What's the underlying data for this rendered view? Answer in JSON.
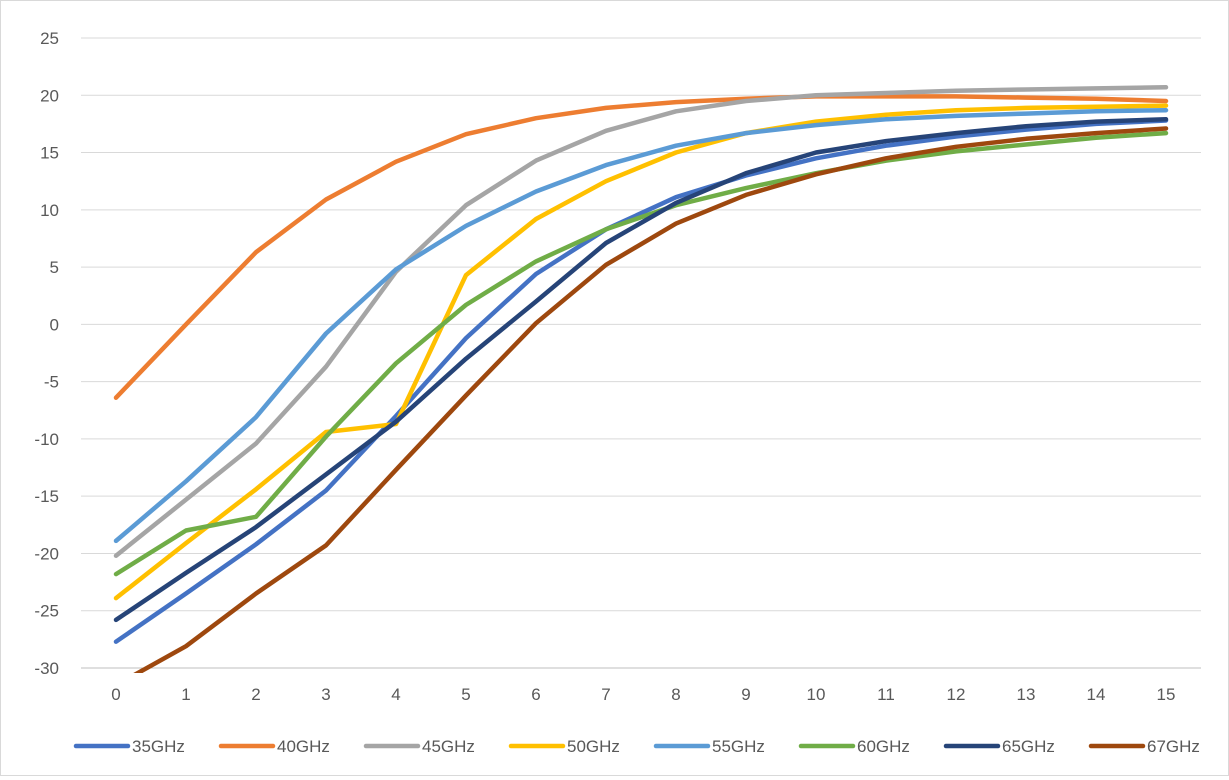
{
  "chart_data": {
    "type": "line",
    "title": "",
    "xlabel": "",
    "ylabel": "",
    "x": [
      0,
      1,
      2,
      3,
      4,
      5,
      6,
      7,
      8,
      9,
      10,
      11,
      12,
      13,
      14,
      15
    ],
    "x_tick_labels": [
      "0",
      "1",
      "2",
      "3",
      "4",
      "5",
      "6",
      "7",
      "8",
      "9",
      "10",
      "11",
      "12",
      "13",
      "14",
      "15"
    ],
    "y_tick_labels": [
      "25",
      "20",
      "15",
      "10",
      "5",
      "0",
      "-5",
      "-10",
      "-15",
      "-20",
      "-25",
      "-30"
    ],
    "y_ticks": [
      25,
      20,
      15,
      10,
      5,
      0,
      -5,
      -10,
      -15,
      -20,
      -25,
      -30
    ],
    "ylim": [
      -30,
      25
    ],
    "grid": "horizontal",
    "legend_position": "bottom",
    "series": [
      {
        "name": "35GHz",
        "color": "#4472C4",
        "values": [
          -27.7,
          -23.5,
          -19.2,
          -14.5,
          -8.0,
          -1.2,
          4.4,
          8.3,
          11.1,
          13.0,
          14.5,
          15.6,
          16.4,
          17.0,
          17.5,
          17.8
        ]
      },
      {
        "name": "40GHz",
        "color": "#ED7D31",
        "values": [
          -6.4,
          0.0,
          6.3,
          10.9,
          14.2,
          16.6,
          18.0,
          18.9,
          19.4,
          19.7,
          19.9,
          19.9,
          19.9,
          19.8,
          19.7,
          19.5
        ]
      },
      {
        "name": "45GHz",
        "color": "#A5A5A5",
        "values": [
          -20.2,
          -15.3,
          -10.4,
          -3.7,
          4.6,
          10.4,
          14.3,
          16.9,
          18.6,
          19.5,
          20.0,
          20.2,
          20.4,
          20.5,
          20.6,
          20.7
        ]
      },
      {
        "name": "50GHz",
        "color": "#FFC000",
        "values": [
          -23.9,
          -19.1,
          -14.4,
          -9.4,
          -8.7,
          4.3,
          9.2,
          12.5,
          15.0,
          16.7,
          17.7,
          18.3,
          18.7,
          18.9,
          19.0,
          19.1
        ]
      },
      {
        "name": "55GHz",
        "color": "#5B9BD5",
        "values": [
          -18.9,
          -13.7,
          -8.1,
          -0.8,
          4.8,
          8.6,
          11.6,
          13.9,
          15.6,
          16.7,
          17.4,
          17.9,
          18.2,
          18.4,
          18.6,
          18.7
        ]
      },
      {
        "name": "60GHz",
        "color": "#70AD47",
        "values": [
          -21.8,
          -18.0,
          -16.8,
          -9.8,
          -3.4,
          1.7,
          5.5,
          8.3,
          10.4,
          11.9,
          13.2,
          14.3,
          15.1,
          15.7,
          16.3,
          16.7
        ]
      },
      {
        "name": "65GHz",
        "color": "#264478",
        "values": [
          -25.8,
          -21.7,
          -17.7,
          -13.1,
          -8.5,
          -3.0,
          2.0,
          7.1,
          10.6,
          13.2,
          15.0,
          16.0,
          16.7,
          17.3,
          17.7,
          17.9
        ]
      },
      {
        "name": "67GHz",
        "color": "#9E480E",
        "values": [
          -31.5,
          -28.1,
          -23.5,
          -19.3,
          -12.7,
          -6.2,
          0.1,
          5.2,
          8.8,
          11.3,
          13.1,
          14.5,
          15.5,
          16.2,
          16.7,
          17.1
        ]
      }
    ]
  }
}
